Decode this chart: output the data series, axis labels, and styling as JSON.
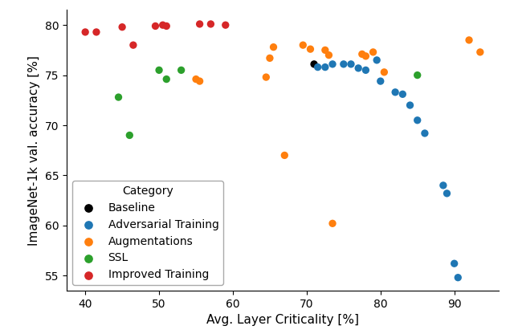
{
  "title": "",
  "xlabel": "Avg. Layer Criticality [%]",
  "ylabel": "ImageNet-1k val. accuracy [%]",
  "xlim": [
    37.5,
    96
  ],
  "ylim": [
    53.5,
    81.5
  ],
  "xticks": [
    40,
    50,
    60,
    70,
    80,
    90
  ],
  "yticks": [
    55,
    60,
    65,
    70,
    75,
    80
  ],
  "legend_title": "Category",
  "categories": {
    "Baseline": {
      "color": "black",
      "points": [
        [
          71.0,
          76.1
        ]
      ]
    },
    "Adversarial Training": {
      "color": "#1f77b4",
      "points": [
        [
          71.5,
          75.8
        ],
        [
          72.5,
          75.8
        ],
        [
          73.5,
          76.1
        ],
        [
          75.0,
          76.1
        ],
        [
          76.0,
          76.1
        ],
        [
          77.0,
          75.7
        ],
        [
          78.0,
          75.5
        ],
        [
          79.5,
          76.5
        ],
        [
          80.0,
          74.4
        ],
        [
          82.0,
          73.3
        ],
        [
          83.0,
          73.1
        ],
        [
          84.0,
          72.0
        ],
        [
          85.0,
          70.5
        ],
        [
          86.0,
          69.2
        ],
        [
          88.5,
          64.0
        ],
        [
          89.0,
          63.2
        ],
        [
          90.0,
          56.2
        ],
        [
          90.5,
          54.8
        ]
      ]
    },
    "Augmentations": {
      "color": "#ff7f0e",
      "points": [
        [
          55.0,
          74.6
        ],
        [
          55.5,
          74.4
        ],
        [
          64.5,
          74.8
        ],
        [
          65.0,
          76.7
        ],
        [
          65.5,
          77.8
        ],
        [
          69.5,
          78.0
        ],
        [
          70.5,
          77.6
        ],
        [
          72.5,
          77.5
        ],
        [
          73.0,
          77.0
        ],
        [
          77.5,
          77.1
        ],
        [
          78.0,
          76.9
        ],
        [
          79.0,
          77.3
        ],
        [
          80.5,
          75.3
        ],
        [
          73.5,
          60.2
        ],
        [
          67.0,
          67.0
        ],
        [
          92.0,
          78.5
        ],
        [
          93.5,
          77.3
        ]
      ]
    },
    "SSL": {
      "color": "#2ca02c",
      "points": [
        [
          44.5,
          72.8
        ],
        [
          46.0,
          69.0
        ],
        [
          50.0,
          75.5
        ],
        [
          51.0,
          74.6
        ],
        [
          53.0,
          75.5
        ],
        [
          85.0,
          75.0
        ]
      ]
    },
    "Improved Training": {
      "color": "#d62728",
      "points": [
        [
          40.0,
          79.3
        ],
        [
          41.5,
          79.3
        ],
        [
          45.0,
          79.8
        ],
        [
          46.5,
          78.0
        ],
        [
          49.5,
          79.9
        ],
        [
          50.5,
          80.0
        ],
        [
          51.0,
          79.9
        ],
        [
          55.5,
          80.1
        ],
        [
          57.0,
          80.1
        ],
        [
          59.0,
          80.0
        ]
      ]
    }
  }
}
